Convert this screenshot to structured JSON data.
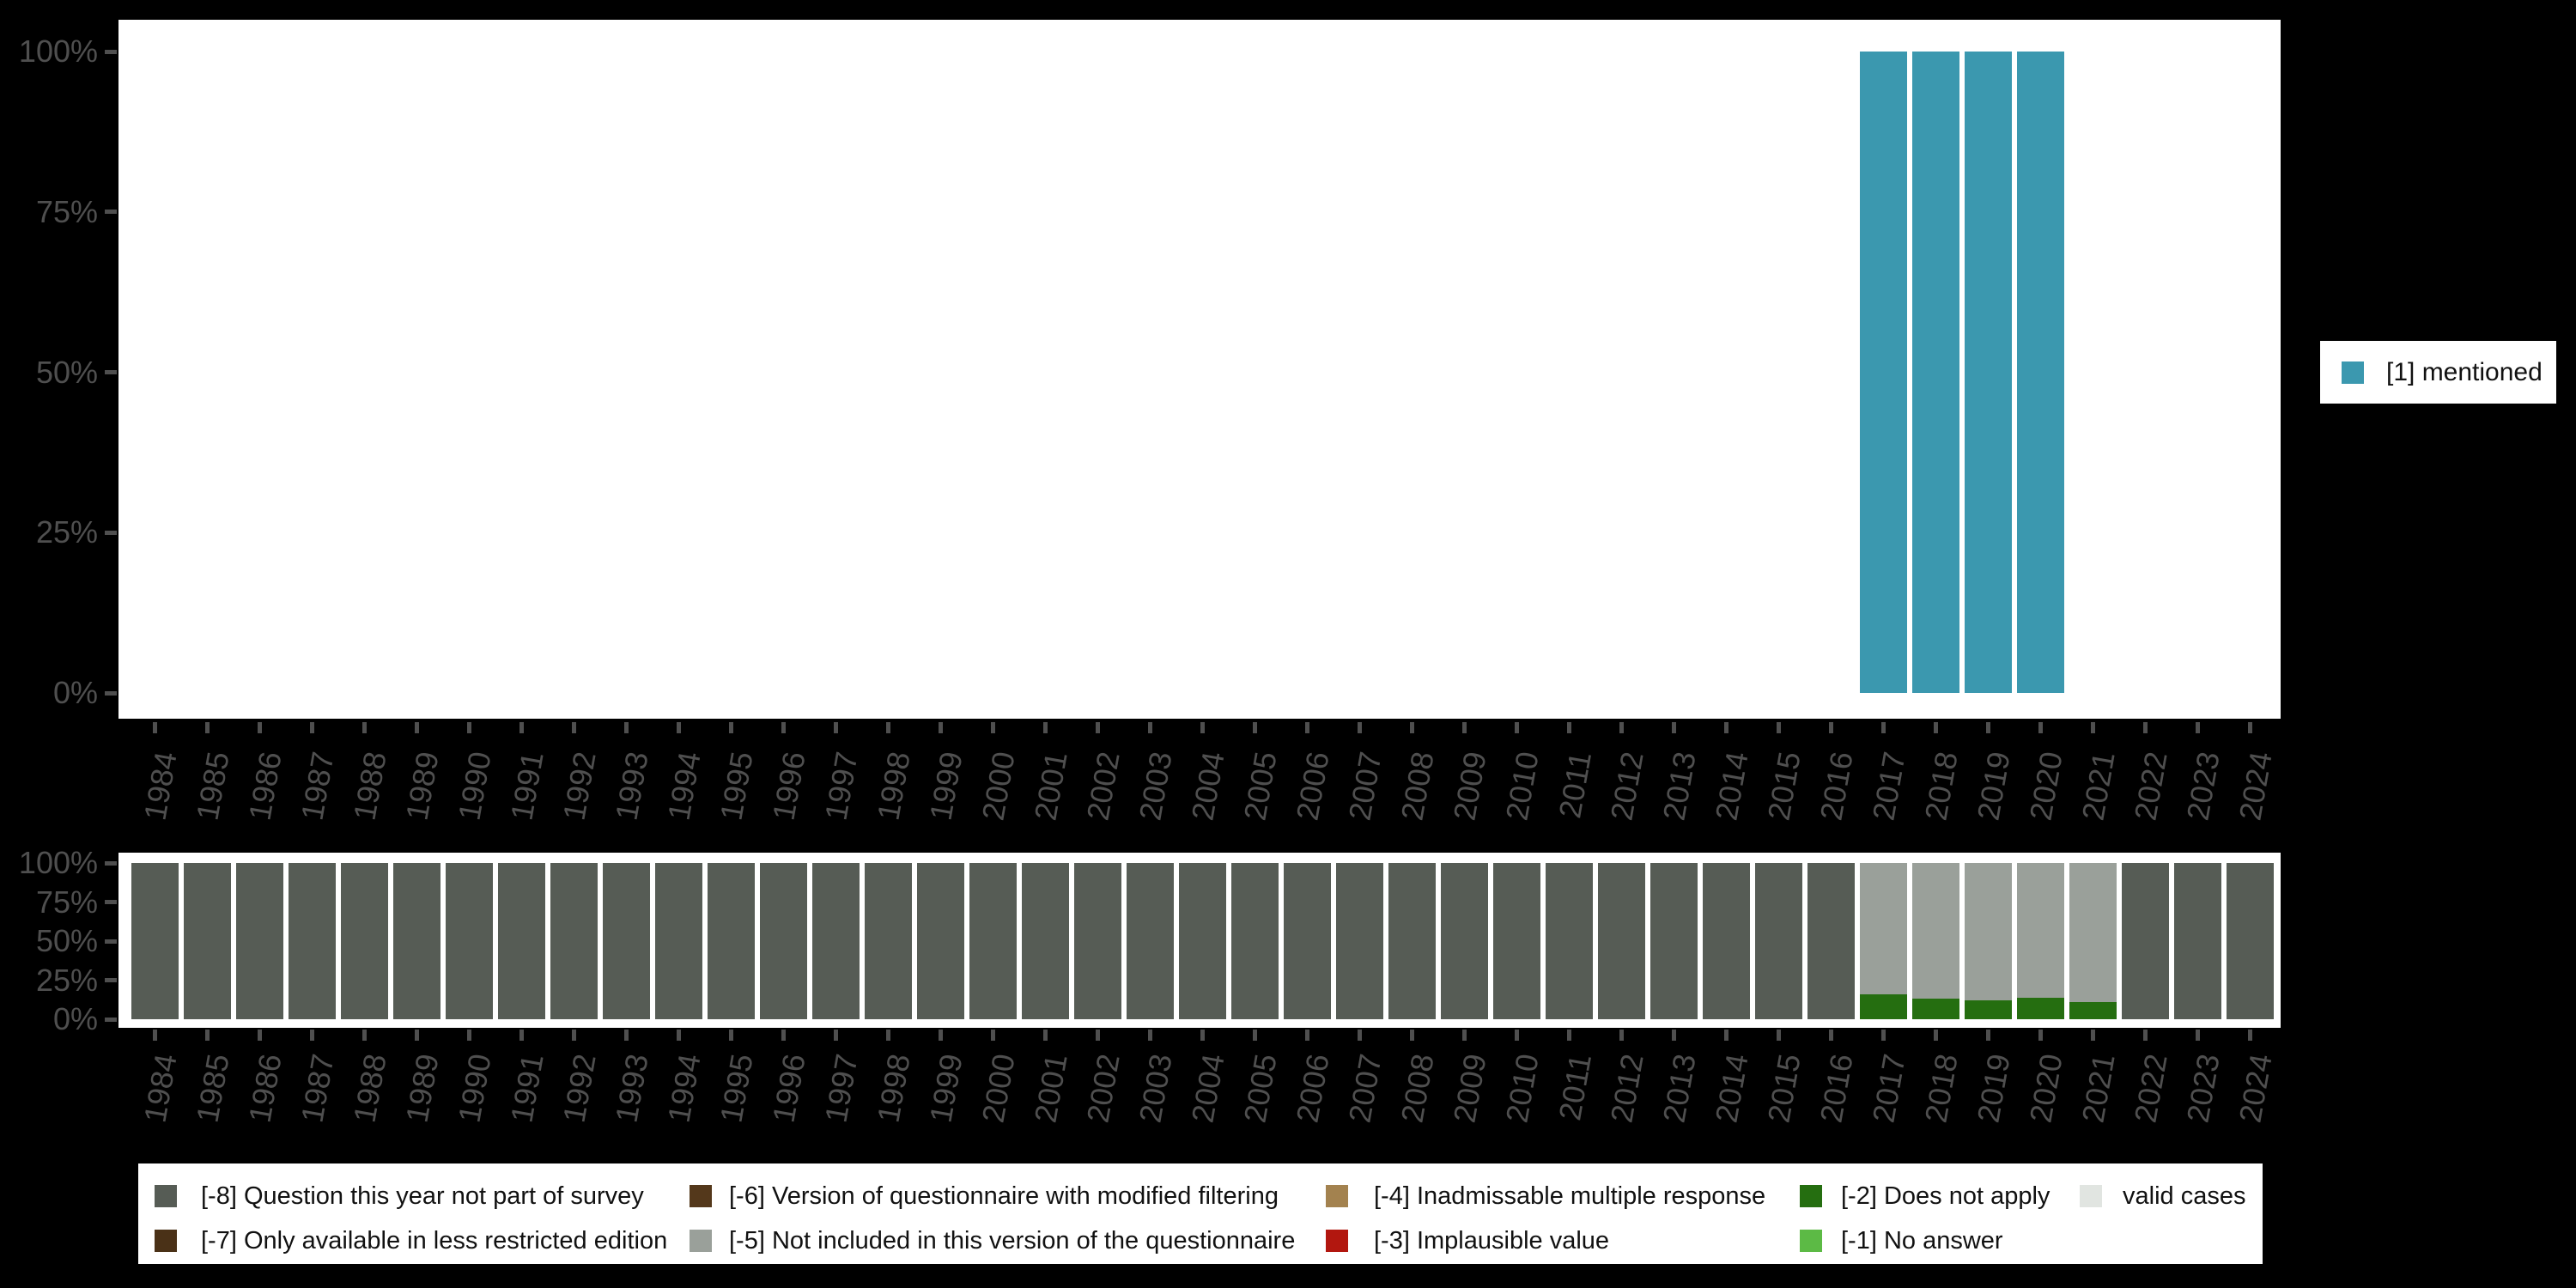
{
  "palette": {
    "background": "#000000",
    "plot_background": "#ffffff",
    "axis_label": "#4f4f4f",
    "legend_text": "#111111"
  },
  "right_legend": {
    "label": "[1] mentioned",
    "color": "#3b98af"
  },
  "legend_bottom": {
    "items": [
      {
        "label": "[-8] Question this year not part of survey",
        "color": "#565c55"
      },
      {
        "label": "[-7] Only available in less restricted edition",
        "color": "#4a3117"
      },
      {
        "label": "[-6] Version of questionnaire with modified filtering",
        "color": "#54381b"
      },
      {
        "label": "[-5] Not included in this version of the questionnaire",
        "color": "#9aa09a"
      },
      {
        "label": "[-4] Inadmissable multiple response",
        "color": "#a3824f"
      },
      {
        "label": "[-3] Implausible value",
        "color": "#b2170f"
      },
      {
        "label": "[-2] Does not apply",
        "color": "#256e10"
      },
      {
        "label": "[-1] No answer",
        "color": "#5cba45"
      },
      {
        "label": "valid cases",
        "color": "#e1e5e1"
      }
    ]
  },
  "chart_data": [
    {
      "id": "top-mentioned-chart",
      "type": "bar",
      "title": "",
      "xlabel": "",
      "ylabel": "",
      "ylim": [
        0,
        100
      ],
      "grid": false,
      "legend_position": "right",
      "y_ticks": [
        "100%",
        "75%",
        "50%",
        "25%",
        "0%"
      ],
      "categories": [
        "1984",
        "1985",
        "1986",
        "1987",
        "1988",
        "1989",
        "1990",
        "1991",
        "1992",
        "1993",
        "1994",
        "1995",
        "1996",
        "1997",
        "1998",
        "1999",
        "2000",
        "2001",
        "2002",
        "2003",
        "2004",
        "2005",
        "2006",
        "2007",
        "2008",
        "2009",
        "2010",
        "2011",
        "2012",
        "2013",
        "2014",
        "2015",
        "2016",
        "2017",
        "2018",
        "2019",
        "2020",
        "2021",
        "2022",
        "2023",
        "2024"
      ],
      "series": [
        {
          "name": "[1] mentioned",
          "color": "#3b98af",
          "values": [
            0,
            0,
            0,
            0,
            0,
            0,
            0,
            0,
            0,
            0,
            0,
            0,
            0,
            0,
            0,
            0,
            0,
            0,
            0,
            0,
            0,
            0,
            0,
            0,
            0,
            0,
            0,
            0,
            0,
            0,
            0,
            0,
            0,
            100,
            100,
            100,
            100,
            0,
            0,
            0,
            0
          ]
        }
      ]
    },
    {
      "id": "bottom-missings-chart",
      "type": "stacked-bar-percent",
      "title": "",
      "xlabel": "",
      "ylabel": "",
      "ylim": [
        0,
        100
      ],
      "grid": false,
      "legend_position": "bottom",
      "stack_order": "bottom-to-top",
      "y_ticks": [
        "100%",
        "75%",
        "50%",
        "25%",
        "0%"
      ],
      "categories": [
        "1984",
        "1985",
        "1986",
        "1987",
        "1988",
        "1989",
        "1990",
        "1991",
        "1992",
        "1993",
        "1994",
        "1995",
        "1996",
        "1997",
        "1998",
        "1999",
        "2000",
        "2001",
        "2002",
        "2003",
        "2004",
        "2005",
        "2006",
        "2007",
        "2008",
        "2009",
        "2010",
        "2011",
        "2012",
        "2013",
        "2014",
        "2015",
        "2016",
        "2017",
        "2018",
        "2019",
        "2020",
        "2021",
        "2022",
        "2023",
        "2024"
      ],
      "series": [
        {
          "name": "[-2] Does not apply",
          "color": "#256e10",
          "values": [
            0,
            0,
            0,
            0,
            0,
            0,
            0,
            0,
            0,
            0,
            0,
            0,
            0,
            0,
            0,
            0,
            0,
            0,
            0,
            0,
            0,
            0,
            0,
            0,
            0,
            0,
            0,
            0,
            0,
            0,
            0,
            0,
            0,
            16,
            13,
            12,
            14,
            11,
            0,
            0,
            0
          ]
        },
        {
          "name": "[-5] Not included in this version of the questionnaire",
          "color": "#9aa09a",
          "values": [
            0,
            0,
            0,
            0,
            0,
            0,
            0,
            0,
            0,
            0,
            0,
            0,
            0,
            0,
            0,
            0,
            0,
            0,
            0,
            0,
            0,
            0,
            0,
            0,
            0,
            0,
            0,
            0,
            0,
            0,
            0,
            0,
            0,
            84,
            87,
            88,
            86,
            89,
            0,
            0,
            0
          ]
        },
        {
          "name": "[-8] Question this year not part of survey",
          "color": "#565c55",
          "values": [
            100,
            100,
            100,
            100,
            100,
            100,
            100,
            100,
            100,
            100,
            100,
            100,
            100,
            100,
            100,
            100,
            100,
            100,
            100,
            100,
            100,
            100,
            100,
            100,
            100,
            100,
            100,
            100,
            100,
            100,
            100,
            100,
            100,
            0,
            0,
            0,
            0,
            0,
            100,
            100,
            100
          ]
        }
      ]
    }
  ]
}
